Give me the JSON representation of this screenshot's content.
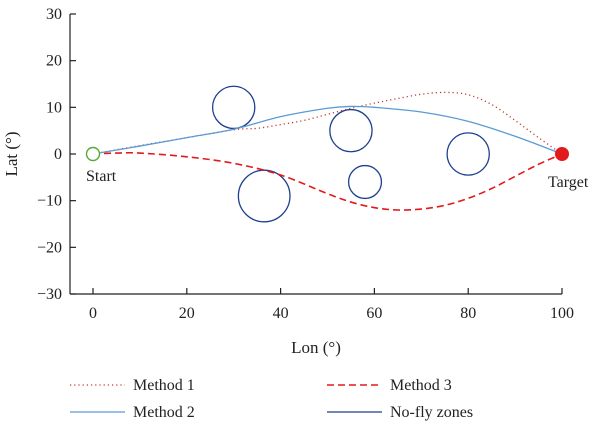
{
  "chart_data": {
    "type": "line",
    "xlabel": "Lon (°)",
    "ylabel": "Lat (°)",
    "xlim": [
      -5,
      100
    ],
    "ylim": [
      -30,
      30
    ],
    "xticks": [
      0,
      20,
      40,
      60,
      80,
      100
    ],
    "yticks": [
      -30,
      -20,
      -10,
      0,
      10,
      20,
      30
    ],
    "grid": false,
    "legend_position": "bottom",
    "series": [
      {
        "name": "Method 1",
        "style": "dotted",
        "color": "#c0392b",
        "x": [
          0,
          10,
          20,
          30,
          35,
          40,
          45,
          50,
          55,
          60,
          65,
          70,
          75,
          80,
          85,
          90,
          95,
          100
        ],
        "y": [
          0,
          1.8,
          3.5,
          5.2,
          5.5,
          6.3,
          7.2,
          8.5,
          9.8,
          10.9,
          11.9,
          12.8,
          13.2,
          12.7,
          10.6,
          7.2,
          3.5,
          0
        ]
      },
      {
        "name": "Method 2",
        "style": "solid",
        "color": "#5b9bd5",
        "x": [
          0,
          10,
          20,
          30,
          40,
          50,
          55,
          60,
          70,
          80,
          90,
          100
        ],
        "y": [
          0,
          1.7,
          3.5,
          5.3,
          8.0,
          9.8,
          10.2,
          10.0,
          9.0,
          7.0,
          3.8,
          0
        ]
      },
      {
        "name": "Method 3",
        "style": "dashed",
        "color": "#e31a1c",
        "x": [
          0,
          5,
          10,
          20,
          30,
          40,
          50,
          55,
          60,
          65,
          70,
          75,
          80,
          85,
          90,
          95,
          100
        ],
        "y": [
          0,
          0.2,
          0.2,
          -0.6,
          -2.0,
          -4.5,
          -8.5,
          -10.3,
          -11.5,
          -12.0,
          -11.8,
          -11.0,
          -9.5,
          -7.4,
          -4.8,
          -2.2,
          0
        ]
      }
    ],
    "no_fly_zones": {
      "name": "No-fly zones",
      "color": "#1f3f8f",
      "circles": [
        {
          "x": 30,
          "y": 10,
          "r": 4.5
        },
        {
          "x": 55,
          "y": 5,
          "r": 4.5
        },
        {
          "x": 36.5,
          "y": -9,
          "r": 5.5
        },
        {
          "x": 58,
          "y": -6,
          "r": 3.5
        },
        {
          "x": 80,
          "y": 0,
          "r": 4.5
        }
      ]
    },
    "points": {
      "start": {
        "label": "Start",
        "x": 0,
        "y": 0,
        "color": "#55aa33"
      },
      "target": {
        "label": "Target",
        "x": 100,
        "y": 0,
        "color": "#e31a1c"
      }
    }
  }
}
